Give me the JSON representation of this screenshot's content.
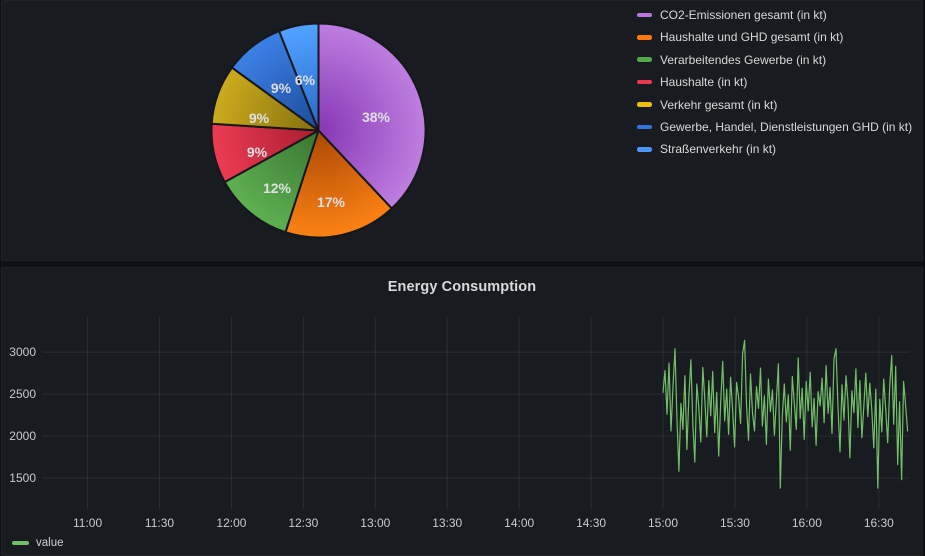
{
  "theme": {
    "page_bg": "#0e0f12",
    "panel_bg": "#181b1f",
    "panel_border": "#202226",
    "text_primary": "#d8d9da",
    "tick_label": "#c9cad1",
    "grid_line": "rgba(204,204,220,0.10)",
    "pie_label_text": "#dfe0e4",
    "pie_slice_stroke": "#16171b"
  },
  "energy_panel": {
    "title": "Energy Consumption",
    "series_label": "value",
    "series_color": "#73BF69"
  },
  "chart_data": [
    {
      "type": "pie",
      "legend_position": "right",
      "start_angle_deg": 0,
      "direction": "clockwise",
      "slices": [
        {
          "label": "CO2-Emissionen gesamt (in kt)",
          "pct": 38,
          "color": "#B877D9",
          "gradient": [
            "#8A3DB8",
            "#BC7BDE"
          ],
          "label_pos": [
            166,
            95
          ]
        },
        {
          "label": "Haushalte und GHD gesamt (in kt)",
          "pct": 17,
          "color": "#FF780A",
          "gradient": [
            "#B04D05",
            "#F87F13"
          ],
          "label_pos": [
            121,
            180
          ]
        },
        {
          "label": "Verarbeitendes Gewerbe (in kt)",
          "pct": 12,
          "color": "#56A64B",
          "gradient": [
            "#3C7A34",
            "#5CAD50"
          ],
          "label_pos": [
            67,
            166
          ]
        },
        {
          "label": "Haushalte (in kt)",
          "pct": 9,
          "color": "#E8394F",
          "gradient": [
            "#AD1F32",
            "#E93A51"
          ],
          "label_pos": [
            47,
            130
          ]
        },
        {
          "label": "Verkehr gesamt (in kt)",
          "pct": 9,
          "color": "#EDBE13",
          "gradient": [
            "#8A7410",
            "#C8A81C"
          ],
          "label_pos": [
            49,
            96
          ]
        },
        {
          "label": "Gewerbe, Handel, Dienstleistungen GHD (in kt)",
          "pct": 9,
          "color": "#3274D9",
          "gradient": [
            "#1F4F9E",
            "#3B7EE3"
          ],
          "label_pos": [
            71,
            66
          ]
        },
        {
          "label": "Straßenverkehr (in kt)",
          "pct": 6,
          "color": "#4D96F7",
          "gradient": [
            "#2D6DCB",
            "#4FA0FF"
          ],
          "label_pos": [
            95,
            58
          ]
        }
      ]
    },
    {
      "type": "line",
      "title": "Energy Consumption",
      "xlabel": "",
      "ylabel": "",
      "grid": true,
      "legend_position": "bottom-left",
      "x_ticks": [
        "11:00",
        "11:30",
        "12:00",
        "12:30",
        "13:00",
        "13:30",
        "14:00",
        "14:30",
        "15:00",
        "15:30",
        "16:00",
        "16:30"
      ],
      "y_ticks": [
        1500,
        2000,
        2500,
        3000
      ],
      "x_range": [
        "10:41",
        "16:43"
      ],
      "y_range": [
        1131,
        3419
      ],
      "series": [
        {
          "name": "value",
          "color": "#73BF69",
          "start": "15:00",
          "end": "16:42",
          "values": [
            2520,
            2780,
            2260,
            2870,
            2060,
            2590,
            3040,
            2230,
            1580,
            2390,
            2080,
            2720,
            1840,
            2470,
            2910,
            2130,
            1690,
            2620,
            2340,
            1930,
            2820,
            2440,
            1990,
            2660,
            2240,
            2770,
            2040,
            2520,
            1760,
            2410,
            2890,
            2180,
            2560,
            2020,
            2700,
            2310,
            1870,
            2640,
            2460,
            2150,
            2980,
            3140,
            2380,
            1950,
            2740,
            2280,
            2060,
            2590,
            2330,
            2810,
            2120,
            2480,
            1900,
            2680,
            2290,
            2550,
            2010,
            2430,
            2860,
            1380,
            2240,
            2620,
            2170,
            2490,
            1830,
            2710,
            2390,
            2080,
            2930,
            2210,
            2570,
            1960,
            2650,
            2300,
            2760,
            2110,
            2450,
            1890,
            2530,
            2360,
            2690,
            2160,
            2840,
            2270,
            2580,
            2030,
            2920,
            3040,
            2350,
            1810,
            2610,
            2190,
            2720,
            2420,
            1740,
            2540,
            2280,
            2800,
            2100,
            2660,
            1980,
            2370,
            2750,
            2230,
            2630,
            2310,
            1860,
            2560,
            1380,
            2440,
            2050,
            2680,
            2320,
            1920,
            2590,
            2960,
            2140,
            2830,
            1660,
            2410,
            1480,
            2650,
            2370,
            2060
          ]
        }
      ]
    }
  ]
}
